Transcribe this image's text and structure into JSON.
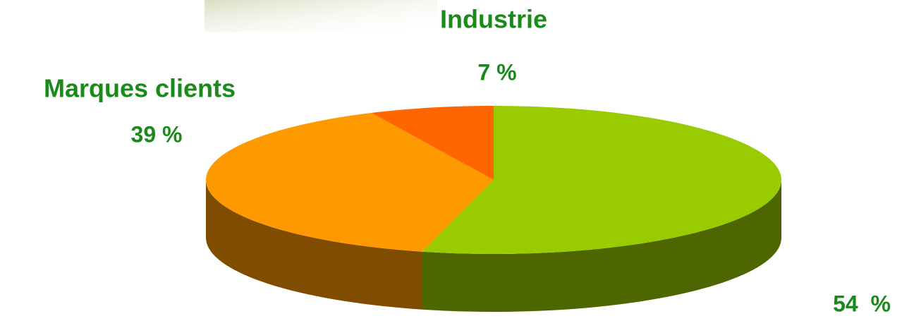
{
  "chart_data": {
    "type": "pie",
    "categories": [
      "Industrie",
      "Marques clients",
      null
    ],
    "values": [
      7,
      39,
      54
    ],
    "value_labels": [
      "7 %",
      "39 %",
      "54  %"
    ],
    "colors": [
      "#ff6600",
      "#ff9900",
      "#99cc00"
    ],
    "label_color": "#1a8a1a"
  }
}
